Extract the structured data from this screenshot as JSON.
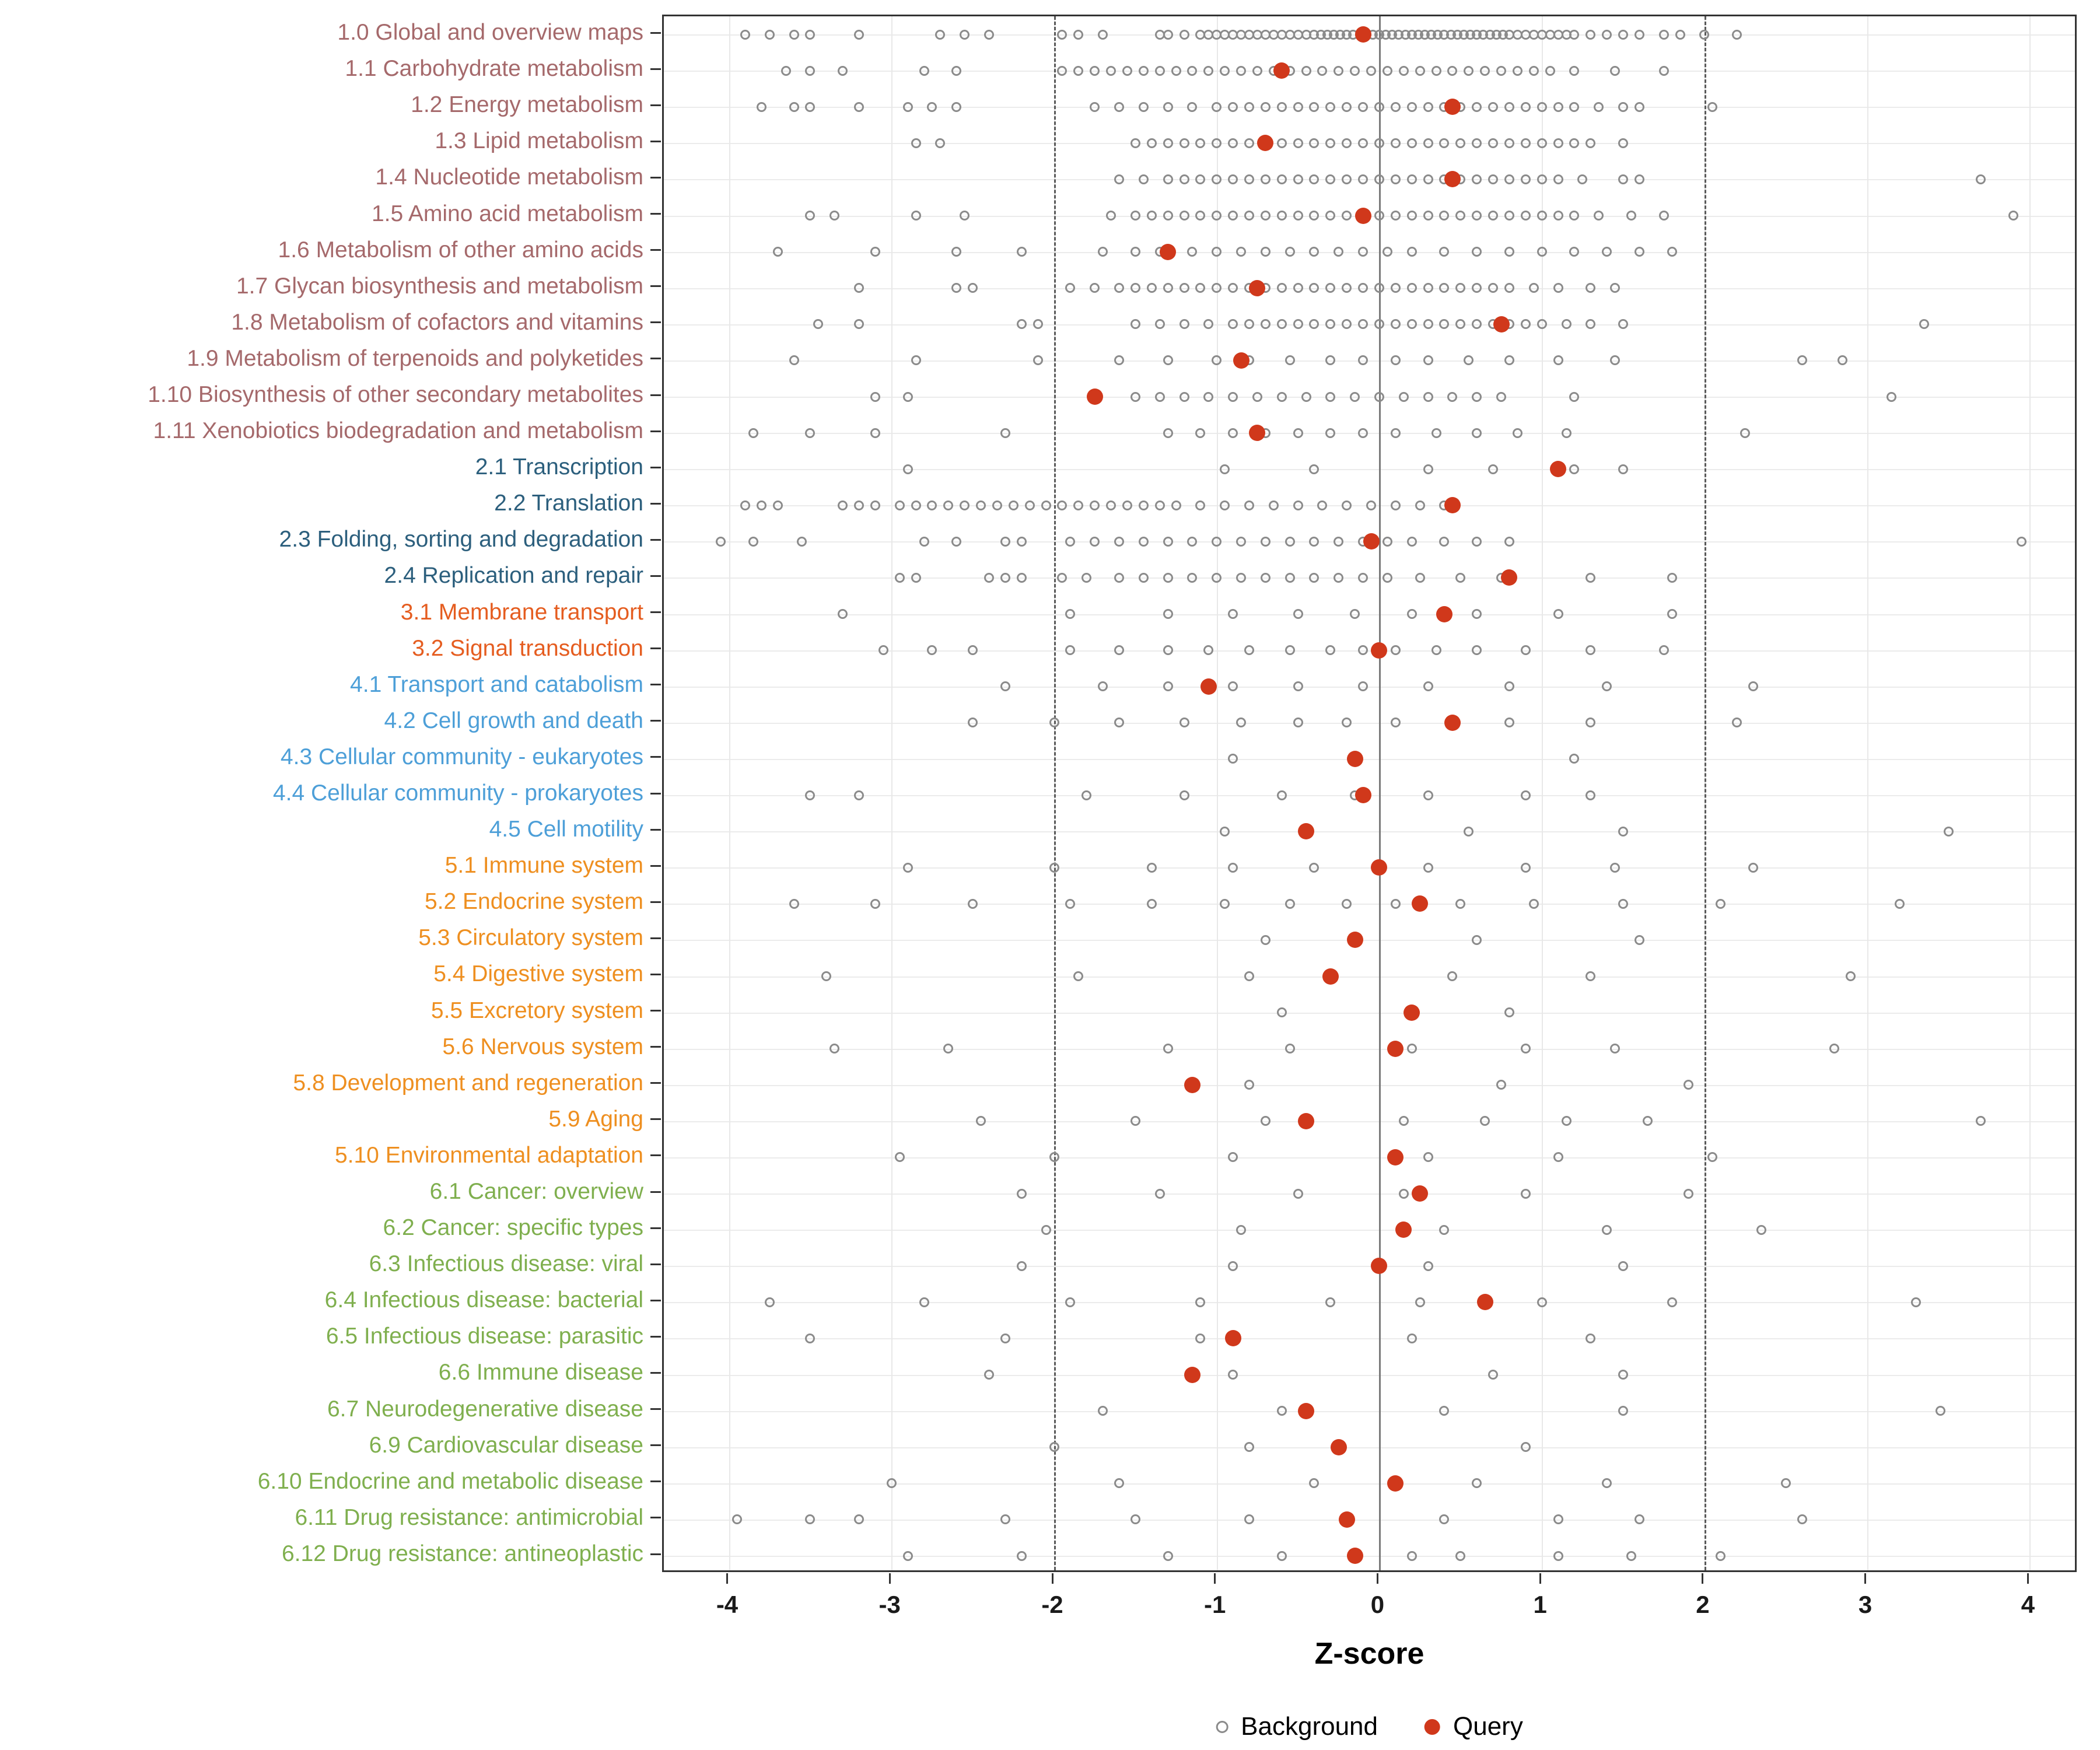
{
  "chart_data": {
    "type": "scatter",
    "title": "",
    "xlabel": "Z-score",
    "xlim": [
      -4.4,
      4.3
    ],
    "x_ticks": [
      -4,
      -3,
      -2,
      -1,
      0,
      1,
      2,
      3,
      4
    ],
    "grid": true,
    "reference_lines": {
      "solid": [
        0
      ],
      "dashed": [
        -2,
        2
      ]
    },
    "legend_position": "bottom",
    "legend": [
      {
        "label": "Background",
        "marker": "open-circle"
      },
      {
        "label": "Query",
        "marker": "filled-circle"
      }
    ],
    "colors": {
      "query": "#D0381B",
      "background_stroke": "#8B8B8B",
      "grid": "#E8E8E8",
      "zero_line": "#7A7A7A",
      "dashed_line": "#5A5A5A",
      "panel_border": "#333333"
    },
    "group_colors": {
      "1": "#A5696B",
      "2": "#2C5F7D",
      "3": "#E55D20",
      "4": "#4D9FD8",
      "5": "#EE8F20",
      "6": "#7FAF4E"
    },
    "rows": [
      {
        "label": "1.0 Global and overview maps",
        "group": "1",
        "query": -0.1,
        "background": [
          -3.9,
          -3.75,
          -3.6,
          -3.5,
          -3.2,
          -2.7,
          -2.55,
          -2.4,
          -1.95,
          -1.85,
          -1.7,
          -1.35,
          -1.3,
          -1.2,
          -1.1,
          -1.05,
          -1.0,
          -0.95,
          -0.9,
          -0.85,
          -0.8,
          -0.75,
          -0.7,
          -0.65,
          -0.6,
          -0.55,
          -0.5,
          -0.45,
          -0.4,
          -0.36,
          -0.32,
          -0.28,
          -0.24,
          -0.2,
          -0.16,
          -0.12,
          -0.08,
          -0.04,
          0.0,
          0.04,
          0.08,
          0.12,
          0.16,
          0.2,
          0.24,
          0.28,
          0.32,
          0.36,
          0.4,
          0.44,
          0.48,
          0.52,
          0.56,
          0.6,
          0.64,
          0.68,
          0.72,
          0.76,
          0.8,
          0.85,
          0.9,
          0.95,
          1.0,
          1.05,
          1.1,
          1.15,
          1.2,
          1.3,
          1.4,
          1.5,
          1.6,
          1.75,
          1.85,
          2.0,
          2.2
        ]
      },
      {
        "label": "1.1 Carbohydrate metabolism",
        "group": "1",
        "query": -0.6,
        "background": [
          -3.65,
          -3.5,
          -3.3,
          -2.8,
          -2.6,
          -1.95,
          -1.85,
          -1.75,
          -1.65,
          -1.55,
          -1.45,
          -1.35,
          -1.25,
          -1.15,
          -1.05,
          -0.95,
          -0.85,
          -0.75,
          -0.65,
          -0.55,
          -0.45,
          -0.35,
          -0.25,
          -0.15,
          -0.05,
          0.05,
          0.15,
          0.25,
          0.35,
          0.45,
          0.55,
          0.65,
          0.75,
          0.85,
          0.95,
          1.05,
          1.2,
          1.45,
          1.75
        ]
      },
      {
        "label": "1.2 Energy metabolism",
        "group": "1",
        "query": 0.45,
        "background": [
          -3.8,
          -3.6,
          -3.5,
          -3.2,
          -2.9,
          -2.75,
          -2.6,
          -1.75,
          -1.6,
          -1.45,
          -1.3,
          -1.15,
          -1.0,
          -0.9,
          -0.8,
          -0.7,
          -0.6,
          -0.5,
          -0.4,
          -0.3,
          -0.2,
          -0.1,
          0.0,
          0.1,
          0.2,
          0.3,
          0.4,
          0.5,
          0.6,
          0.7,
          0.8,
          0.9,
          1.0,
          1.1,
          1.2,
          1.35,
          1.5,
          1.6,
          2.05
        ]
      },
      {
        "label": "1.3 Lipid metabolism",
        "group": "1",
        "query": -0.7,
        "background": [
          -2.85,
          -2.7,
          -1.5,
          -1.4,
          -1.3,
          -1.2,
          -1.1,
          -1.0,
          -0.9,
          -0.8,
          -0.7,
          -0.6,
          -0.5,
          -0.4,
          -0.3,
          -0.2,
          -0.1,
          0.0,
          0.1,
          0.2,
          0.3,
          0.4,
          0.5,
          0.6,
          0.7,
          0.8,
          0.9,
          1.0,
          1.1,
          1.2,
          1.3,
          1.5
        ]
      },
      {
        "label": "1.4 Nucleotide metabolism",
        "group": "1",
        "query": 0.45,
        "background": [
          -1.6,
          -1.45,
          -1.3,
          -1.2,
          -1.1,
          -1.0,
          -0.9,
          -0.8,
          -0.7,
          -0.6,
          -0.5,
          -0.4,
          -0.3,
          -0.2,
          -0.1,
          0.0,
          0.1,
          0.2,
          0.3,
          0.4,
          0.5,
          0.6,
          0.7,
          0.8,
          0.9,
          1.0,
          1.1,
          1.25,
          1.5,
          1.6,
          3.7
        ]
      },
      {
        "label": "1.5 Amino acid metabolism",
        "group": "1",
        "query": -0.1,
        "background": [
          -3.5,
          -3.35,
          -2.85,
          -2.55,
          -1.65,
          -1.5,
          -1.4,
          -1.3,
          -1.2,
          -1.1,
          -1.0,
          -0.9,
          -0.8,
          -0.7,
          -0.6,
          -0.5,
          -0.4,
          -0.3,
          -0.2,
          -0.1,
          0.0,
          0.1,
          0.2,
          0.3,
          0.4,
          0.5,
          0.6,
          0.7,
          0.8,
          0.9,
          1.0,
          1.1,
          1.2,
          1.35,
          1.55,
          1.75,
          3.9
        ]
      },
      {
        "label": "1.6 Metabolism of other amino acids",
        "group": "1",
        "query": -1.3,
        "background": [
          -3.7,
          -3.1,
          -2.6,
          -2.2,
          -1.7,
          -1.5,
          -1.35,
          -1.15,
          -1.0,
          -0.85,
          -0.7,
          -0.55,
          -0.4,
          -0.25,
          -0.1,
          0.05,
          0.2,
          0.4,
          0.6,
          0.8,
          1.0,
          1.2,
          1.4,
          1.6,
          1.8
        ]
      },
      {
        "label": "1.7 Glycan biosynthesis and metabolism",
        "group": "1",
        "query": -0.75,
        "background": [
          -3.2,
          -2.6,
          -2.5,
          -1.9,
          -1.75,
          -1.6,
          -1.5,
          -1.4,
          -1.3,
          -1.2,
          -1.1,
          -1.0,
          -0.9,
          -0.8,
          -0.7,
          -0.6,
          -0.5,
          -0.4,
          -0.3,
          -0.2,
          -0.1,
          0.0,
          0.1,
          0.2,
          0.3,
          0.4,
          0.5,
          0.6,
          0.7,
          0.8,
          0.95,
          1.1,
          1.3,
          1.45
        ]
      },
      {
        "label": "1.8 Metabolism of cofactors and vitamins",
        "group": "1",
        "query": 0.75,
        "background": [
          -3.45,
          -3.2,
          -2.2,
          -2.1,
          -1.5,
          -1.35,
          -1.2,
          -1.05,
          -0.9,
          -0.8,
          -0.7,
          -0.6,
          -0.5,
          -0.4,
          -0.3,
          -0.2,
          -0.1,
          0.0,
          0.1,
          0.2,
          0.3,
          0.4,
          0.5,
          0.6,
          0.7,
          0.8,
          0.9,
          1.0,
          1.15,
          1.3,
          1.5,
          3.35
        ]
      },
      {
        "label": "1.9 Metabolism of terpenoids and polyketides",
        "group": "1",
        "query": -0.85,
        "background": [
          -3.6,
          -2.85,
          -2.1,
          -1.6,
          -1.3,
          -1.0,
          -0.8,
          -0.55,
          -0.3,
          -0.1,
          0.1,
          0.3,
          0.55,
          0.8,
          1.1,
          1.45,
          2.6,
          2.85
        ]
      },
      {
        "label": "1.10 Biosynthesis of other secondary metabolites",
        "group": "1",
        "query": -1.75,
        "background": [
          -3.1,
          -2.9,
          -1.5,
          -1.35,
          -1.2,
          -1.05,
          -0.9,
          -0.75,
          -0.6,
          -0.45,
          -0.3,
          -0.15,
          0.0,
          0.15,
          0.3,
          0.45,
          0.6,
          0.75,
          1.2,
          3.15
        ]
      },
      {
        "label": "1.11 Xenobiotics biodegradation and metabolism",
        "group": "1",
        "query": -0.75,
        "background": [
          -3.85,
          -3.5,
          -3.1,
          -2.3,
          -1.3,
          -1.1,
          -0.9,
          -0.7,
          -0.5,
          -0.3,
          -0.1,
          0.1,
          0.35,
          0.6,
          0.85,
          1.15,
          2.25
        ]
      },
      {
        "label": "2.1 Transcription",
        "group": "2",
        "query": 1.1,
        "background": [
          -2.9,
          -0.95,
          -0.4,
          0.3,
          0.7,
          1.2,
          1.5
        ]
      },
      {
        "label": "2.2 Translation",
        "group": "2",
        "query": 0.45,
        "background": [
          -3.9,
          -3.8,
          -3.7,
          -3.3,
          -3.2,
          -3.1,
          -2.95,
          -2.85,
          -2.75,
          -2.65,
          -2.55,
          -2.45,
          -2.35,
          -2.25,
          -2.15,
          -2.05,
          -1.95,
          -1.85,
          -1.75,
          -1.65,
          -1.55,
          -1.45,
          -1.35,
          -1.25,
          -1.1,
          -0.95,
          -0.8,
          -0.65,
          -0.5,
          -0.35,
          -0.2,
          -0.05,
          0.1,
          0.25,
          0.4
        ]
      },
      {
        "label": "2.3 Folding, sorting and degradation",
        "group": "2",
        "query": -0.05,
        "background": [
          -4.05,
          -3.85,
          -3.55,
          -2.8,
          -2.6,
          -2.3,
          -2.2,
          -1.9,
          -1.75,
          -1.6,
          -1.45,
          -1.3,
          -1.15,
          -1.0,
          -0.85,
          -0.7,
          -0.55,
          -0.4,
          -0.25,
          -0.1,
          0.05,
          0.2,
          0.4,
          0.6,
          0.8,
          3.95
        ]
      },
      {
        "label": "2.4 Replication and repair",
        "group": "2",
        "query": 0.8,
        "background": [
          -2.95,
          -2.85,
          -2.4,
          -2.3,
          -2.2,
          -1.95,
          -1.8,
          -1.6,
          -1.45,
          -1.3,
          -1.15,
          -1.0,
          -0.85,
          -0.7,
          -0.55,
          -0.4,
          -0.25,
          -0.1,
          0.05,
          0.25,
          0.5,
          0.75,
          1.3,
          1.8
        ]
      },
      {
        "label": "3.1 Membrane transport",
        "group": "3",
        "query": 0.4,
        "background": [
          -3.3,
          -1.9,
          -1.3,
          -0.9,
          -0.5,
          -0.15,
          0.2,
          0.6,
          1.1,
          1.8
        ]
      },
      {
        "label": "3.2 Signal transduction",
        "group": "3",
        "query": 0.0,
        "background": [
          -3.05,
          -2.75,
          -2.5,
          -1.9,
          -1.6,
          -1.3,
          -1.05,
          -0.8,
          -0.55,
          -0.3,
          -0.1,
          0.1,
          0.35,
          0.6,
          0.9,
          1.3,
          1.75
        ]
      },
      {
        "label": "4.1 Transport and catabolism",
        "group": "4",
        "query": -1.05,
        "background": [
          -2.3,
          -1.7,
          -1.3,
          -0.9,
          -0.5,
          -0.1,
          0.3,
          0.8,
          1.4,
          2.3
        ]
      },
      {
        "label": "4.2 Cell growth and death",
        "group": "4",
        "query": 0.45,
        "background": [
          -2.5,
          -2.0,
          -1.6,
          -1.2,
          -0.85,
          -0.5,
          -0.2,
          0.1,
          0.45,
          0.8,
          1.3,
          2.2
        ]
      },
      {
        "label": "4.3 Cellular community - eukaryotes",
        "group": "4",
        "query": -0.15,
        "background": [
          -0.9,
          1.2
        ]
      },
      {
        "label": "4.4 Cellular community - prokaryotes",
        "group": "4",
        "query": -0.1,
        "background": [
          -3.5,
          -3.2,
          -1.8,
          -1.2,
          -0.6,
          -0.15,
          0.3,
          0.9,
          1.3
        ]
      },
      {
        "label": "4.5 Cell motility",
        "group": "4",
        "query": -0.45,
        "background": [
          -0.95,
          0.55,
          1.5,
          3.5
        ]
      },
      {
        "label": "5.1 Immune system",
        "group": "5",
        "query": 0.0,
        "background": [
          -2.9,
          -2.0,
          -1.4,
          -0.9,
          -0.4,
          0.3,
          0.9,
          1.45,
          2.3
        ]
      },
      {
        "label": "5.2 Endocrine system",
        "group": "5",
        "query": 0.25,
        "background": [
          -3.6,
          -3.1,
          -2.5,
          -1.9,
          -1.4,
          -0.95,
          -0.55,
          -0.2,
          0.1,
          0.5,
          0.95,
          1.5,
          2.1,
          3.2
        ]
      },
      {
        "label": "5.3 Circulatory system",
        "group": "5",
        "query": -0.15,
        "background": [
          -0.7,
          0.6,
          1.6
        ]
      },
      {
        "label": "5.4 Digestive system",
        "group": "5",
        "query": -0.3,
        "background": [
          -3.4,
          -1.85,
          -0.8,
          0.45,
          1.3,
          2.9
        ]
      },
      {
        "label": "5.5 Excretory system",
        "group": "5",
        "query": 0.2,
        "background": [
          -0.6,
          0.8
        ]
      },
      {
        "label": "5.6 Nervous system",
        "group": "5",
        "query": 0.1,
        "background": [
          -3.35,
          -2.65,
          -1.3,
          -0.55,
          0.2,
          0.9,
          1.45,
          2.8
        ]
      },
      {
        "label": "5.8 Development and regeneration",
        "group": "5",
        "query": -1.15,
        "background": [
          -0.8,
          0.75,
          1.9
        ]
      },
      {
        "label": "5.9 Aging",
        "group": "5",
        "query": -0.45,
        "background": [
          -2.45,
          -1.5,
          -0.7,
          0.15,
          0.65,
          1.15,
          1.65,
          3.7
        ]
      },
      {
        "label": "5.10 Environmental adaptation",
        "group": "5",
        "query": 0.1,
        "background": [
          -2.95,
          -2.0,
          -0.9,
          0.3,
          1.1,
          2.05
        ]
      },
      {
        "label": "6.1 Cancer: overview",
        "group": "6",
        "query": 0.25,
        "background": [
          -2.2,
          -1.35,
          -0.5,
          0.15,
          0.9,
          1.9
        ]
      },
      {
        "label": "6.2 Cancer: specific types",
        "group": "6",
        "query": 0.15,
        "background": [
          -2.05,
          -0.85,
          0.4,
          1.4,
          2.35
        ]
      },
      {
        "label": "6.3 Infectious disease: viral",
        "group": "6",
        "query": 0.0,
        "background": [
          -2.2,
          -0.9,
          0.3,
          1.5
        ]
      },
      {
        "label": "6.4 Infectious disease: bacterial",
        "group": "6",
        "query": 0.65,
        "background": [
          -3.75,
          -2.8,
          -1.9,
          -1.1,
          -0.3,
          0.25,
          1.0,
          1.8,
          3.3
        ]
      },
      {
        "label": "6.5 Infectious disease: parasitic",
        "group": "6",
        "query": -0.9,
        "background": [
          -3.5,
          -2.3,
          -1.1,
          0.2,
          1.3
        ]
      },
      {
        "label": "6.6 Immune disease",
        "group": "6",
        "query": -1.15,
        "background": [
          -2.4,
          -0.9,
          0.7,
          1.5
        ]
      },
      {
        "label": "6.7 Neurodegenerative disease",
        "group": "6",
        "query": -0.45,
        "background": [
          -1.7,
          -0.6,
          0.4,
          1.5,
          3.45
        ]
      },
      {
        "label": "6.9 Cardiovascular disease",
        "group": "6",
        "query": -0.25,
        "background": [
          -2.0,
          -0.8,
          0.9
        ]
      },
      {
        "label": "6.10 Endocrine and metabolic disease",
        "group": "6",
        "query": 0.1,
        "background": [
          -3.0,
          -1.6,
          -0.4,
          0.6,
          1.4,
          2.5
        ]
      },
      {
        "label": "6.11 Drug resistance: antimicrobial",
        "group": "6",
        "query": -0.2,
        "background": [
          -3.95,
          -3.5,
          -3.2,
          -2.3,
          -1.5,
          -0.8,
          -0.2,
          0.4,
          1.1,
          1.6,
          2.6
        ]
      },
      {
        "label": "6.12 Drug resistance: antineoplastic",
        "group": "6",
        "query": -0.15,
        "background": [
          -2.9,
          -2.2,
          -1.3,
          -0.6,
          0.2,
          0.5,
          1.1,
          1.55,
          2.1
        ]
      }
    ]
  }
}
